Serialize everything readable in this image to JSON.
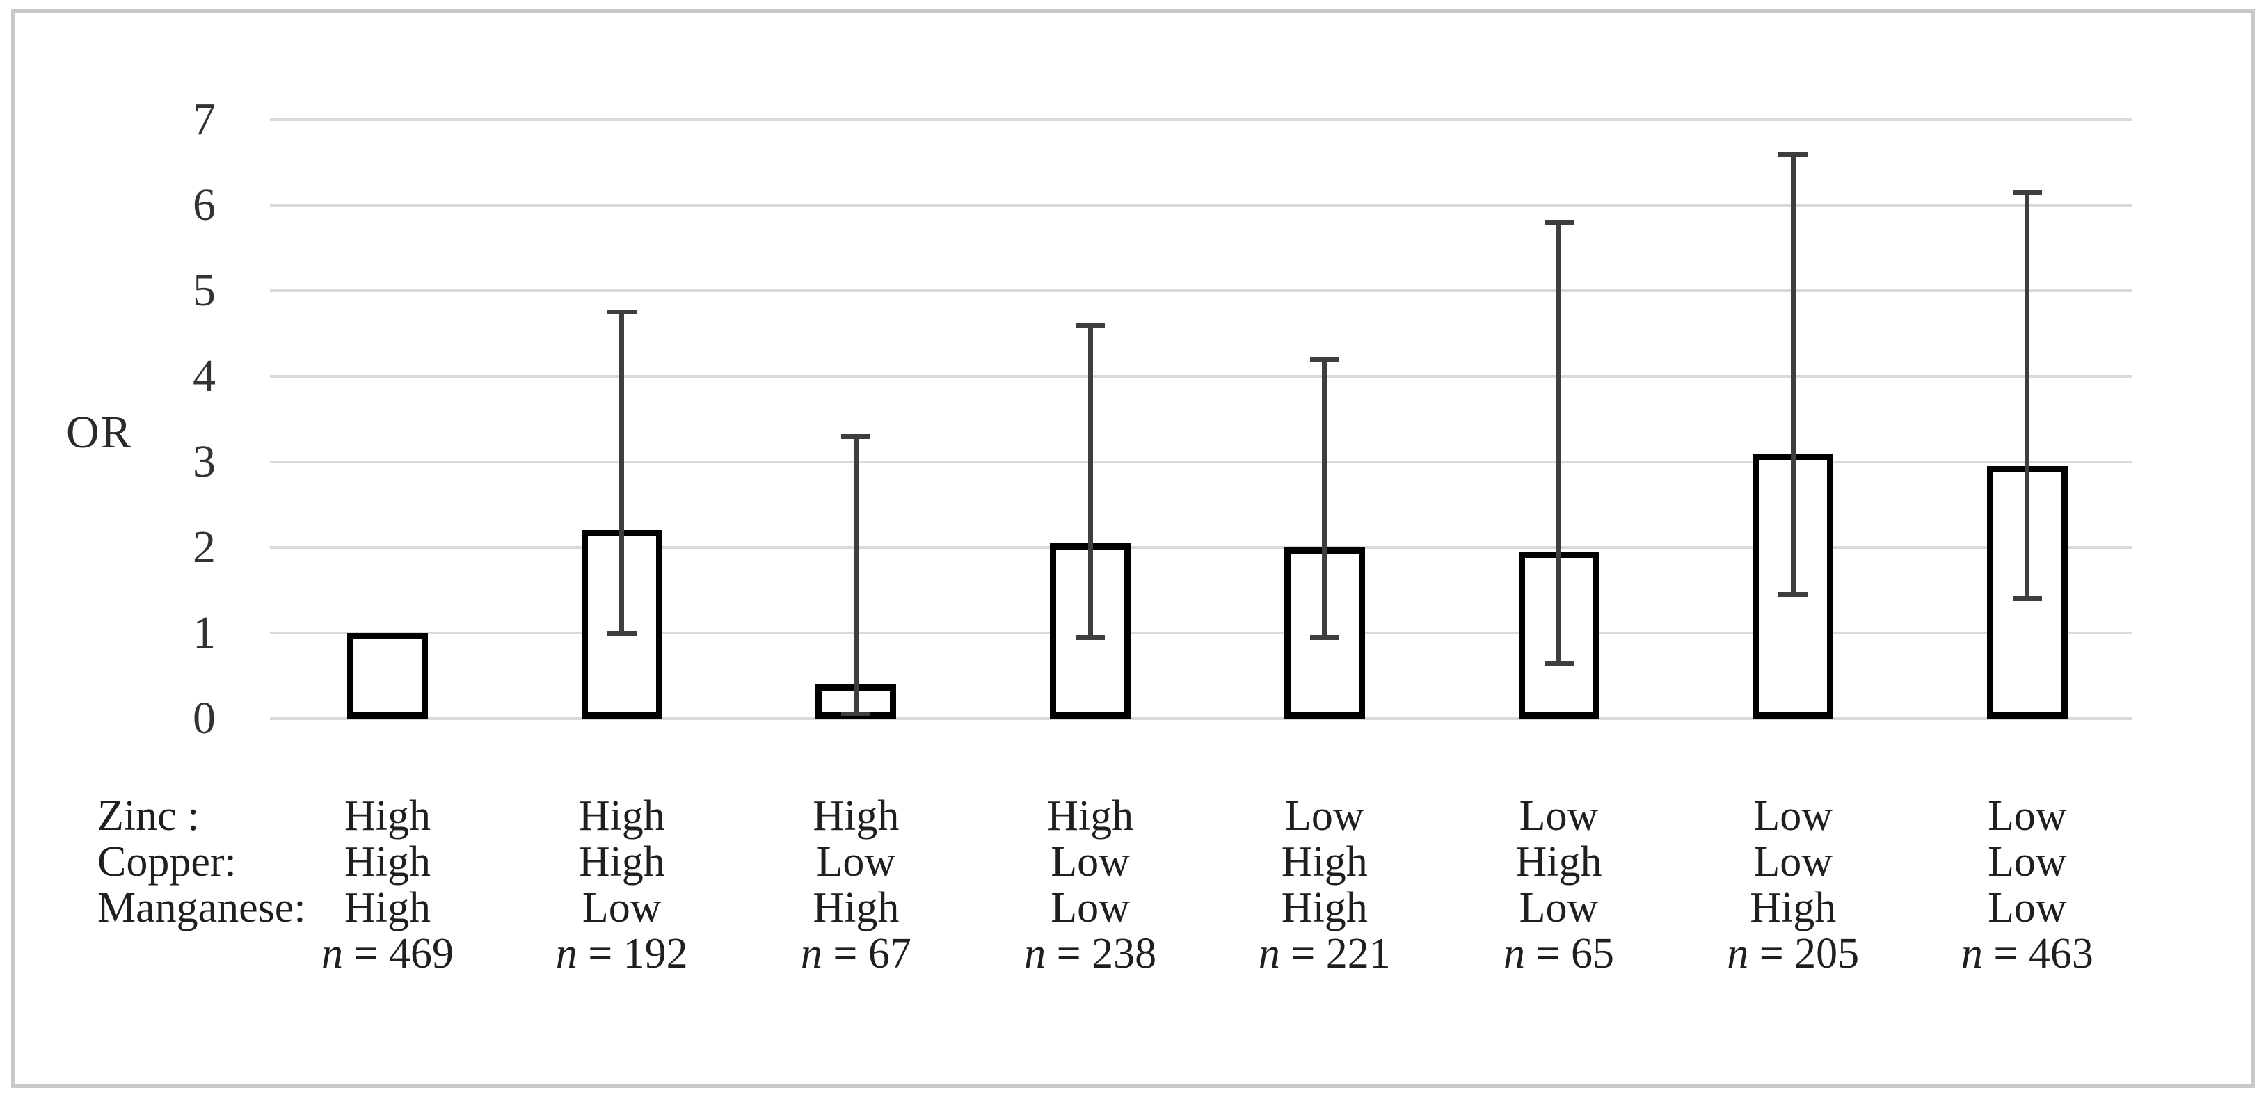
{
  "figure": {
    "y_axis_title": "OR",
    "row_labels": [
      "Zinc :",
      "Copper:",
      "Manganese:"
    ]
  },
  "chart_data": {
    "type": "bar",
    "title": "",
    "xlabel": "",
    "ylabel": "OR",
    "ylim": [
      0,
      7
    ],
    "yticks": [
      7,
      6,
      5,
      4,
      3,
      2,
      1,
      0
    ],
    "grid": true,
    "legend": "none",
    "error_bars": true,
    "x_category_rows": [
      "Zinc",
      "Copper",
      "Manganese"
    ],
    "bars": [
      {
        "zinc": "High",
        "copper": "High",
        "manganese": "High",
        "n": 469,
        "or": 1.0,
        "ci_low": null,
        "ci_high": null
      },
      {
        "zinc": "High",
        "copper": "High",
        "manganese": "Low",
        "n": 192,
        "or": 2.2,
        "ci_low": 1.0,
        "ci_high": 4.75
      },
      {
        "zinc": "High",
        "copper": "Low",
        "manganese": "High",
        "n": 67,
        "or": 0.4,
        "ci_low": 0.05,
        "ci_high": 3.3
      },
      {
        "zinc": "High",
        "copper": "Low",
        "manganese": "Low",
        "n": 238,
        "or": 2.05,
        "ci_low": 0.95,
        "ci_high": 4.6
      },
      {
        "zinc": "Low",
        "copper": "High",
        "manganese": "High",
        "n": 221,
        "or": 2.0,
        "ci_low": 0.95,
        "ci_high": 4.2
      },
      {
        "zinc": "Low",
        "copper": "High",
        "manganese": "Low",
        "n": 65,
        "or": 1.95,
        "ci_low": 0.65,
        "ci_high": 5.8
      },
      {
        "zinc": "Low",
        "copper": "Low",
        "manganese": "High",
        "n": 205,
        "or": 3.1,
        "ci_low": 1.45,
        "ci_high": 6.6
      },
      {
        "zinc": "Low",
        "copper": "Low",
        "manganese": "Low",
        "n": 463,
        "or": 2.95,
        "ci_low": 1.4,
        "ci_high": 6.15
      }
    ],
    "colors": {
      "bar_fill": "#ffffff",
      "bar_border": "#000000",
      "error_bar": "#3e3e3e",
      "gridline": "#d9d9d9",
      "frame": "#c9c9c9",
      "text": "#1f1f1f"
    }
  }
}
